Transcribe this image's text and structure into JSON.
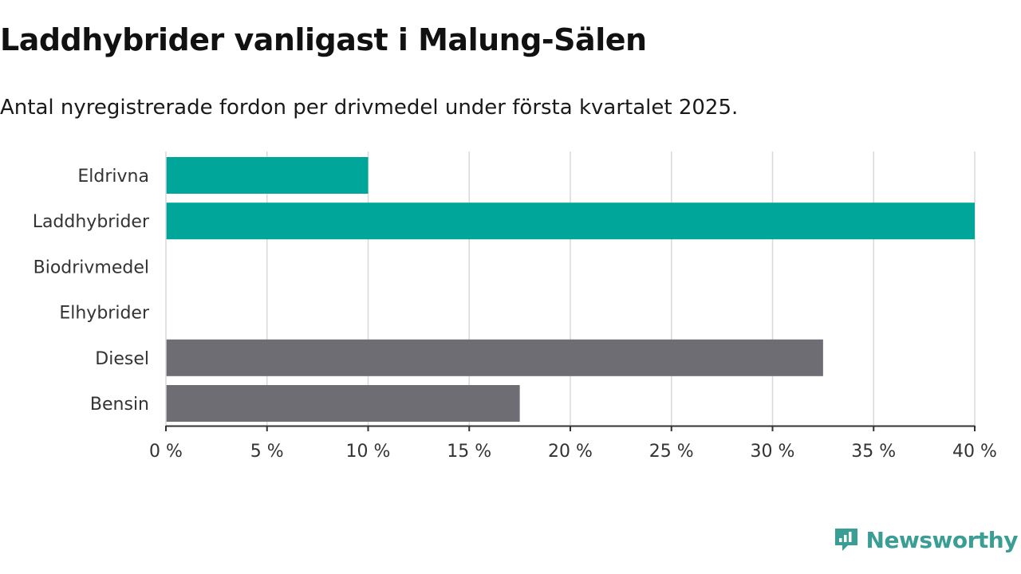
{
  "title": "Laddhybrider vanligast i Malung-Sälen",
  "subtitle": "Antal nyregistrerade fordon per drivmedel under första kvartalet 2025.",
  "brand": {
    "name": "Newsworthy",
    "icon": "newsworthy-logo-icon",
    "color": "#3a9e95"
  },
  "chart_data": {
    "type": "bar",
    "orientation": "horizontal",
    "categories": [
      "Eldrivna",
      "Laddhybrider",
      "Biodrivmedel",
      "Elhybrider",
      "Diesel",
      "Bensin"
    ],
    "values": [
      10,
      40,
      0,
      0,
      32.5,
      17.5
    ],
    "bar_colors": [
      "#00a69a",
      "#00a69a",
      "#00a69a",
      "#00a69a",
      "#6e6d73",
      "#6e6d73"
    ],
    "xlim": [
      0,
      40
    ],
    "xticks": [
      0,
      5,
      10,
      15,
      20,
      25,
      30,
      35,
      40
    ],
    "tick_suffix": " %",
    "grid": true
  }
}
